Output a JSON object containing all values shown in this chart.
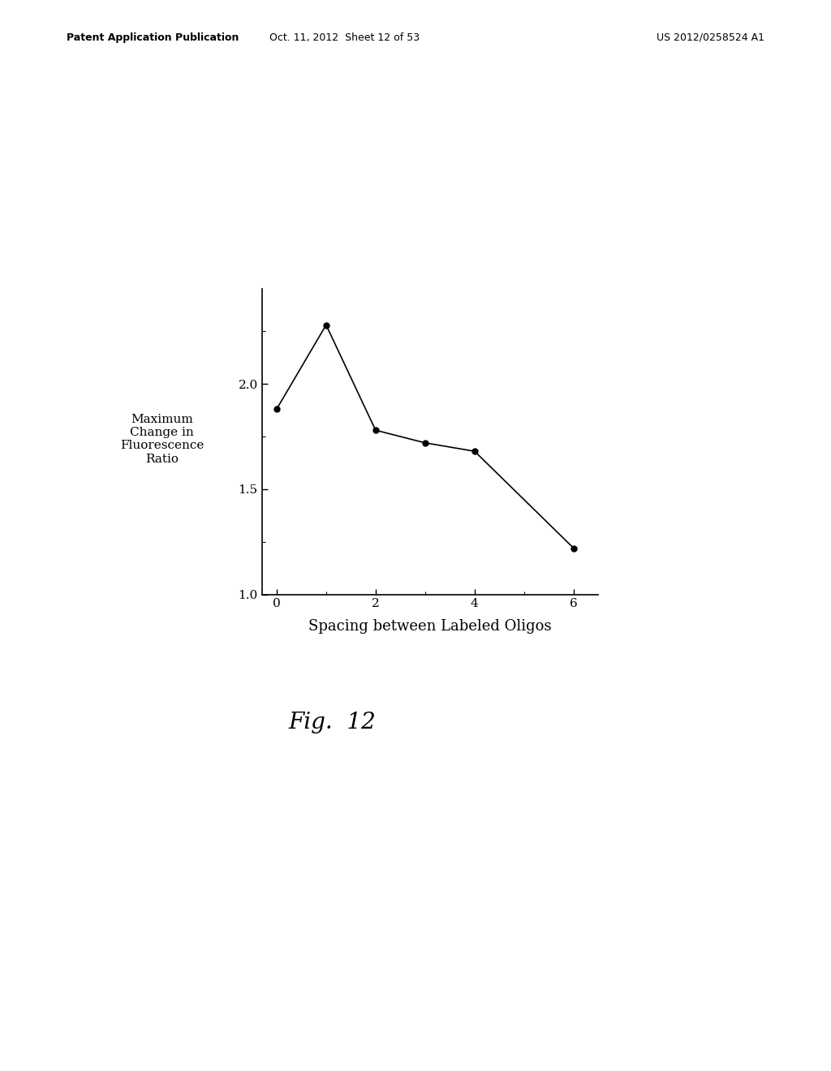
{
  "x": [
    0,
    1,
    2,
    3,
    4,
    6
  ],
  "y": [
    1.88,
    2.28,
    1.78,
    1.72,
    1.68,
    1.22
  ],
  "xlabel": "Spacing between Labeled Oligos",
  "ylabel_lines": [
    "Maximum",
    "Change in",
    "Fluorescence",
    "Ratio"
  ],
  "xlim": [
    -0.3,
    6.5
  ],
  "ylim": [
    1.0,
    2.45
  ],
  "yticks": [
    1.0,
    1.5,
    2.0
  ],
  "ytick_labels": [
    "1.0",
    "1.5",
    "2.0"
  ],
  "xticks": [
    0,
    2,
    4,
    6
  ],
  "xtick_labels": [
    "0",
    "2",
    "4",
    "6"
  ],
  "line_color": "#000000",
  "marker": "o",
  "marker_size": 5,
  "marker_color": "#000000",
  "line_width": 1.2,
  "fig_caption": "Fig.  12",
  "header_left": "Patent Application Publication",
  "header_center": "Oct. 11, 2012  Sheet 12 of 53",
  "header_right": "US 2012/0258524 A1",
  "background_color": "#ffffff",
  "text_color": "#000000",
  "tick_fontsize": 11,
  "xlabel_fontsize": 13,
  "ylabel_fontsize": 11,
  "caption_fontsize": 20,
  "header_fontsize": 9
}
